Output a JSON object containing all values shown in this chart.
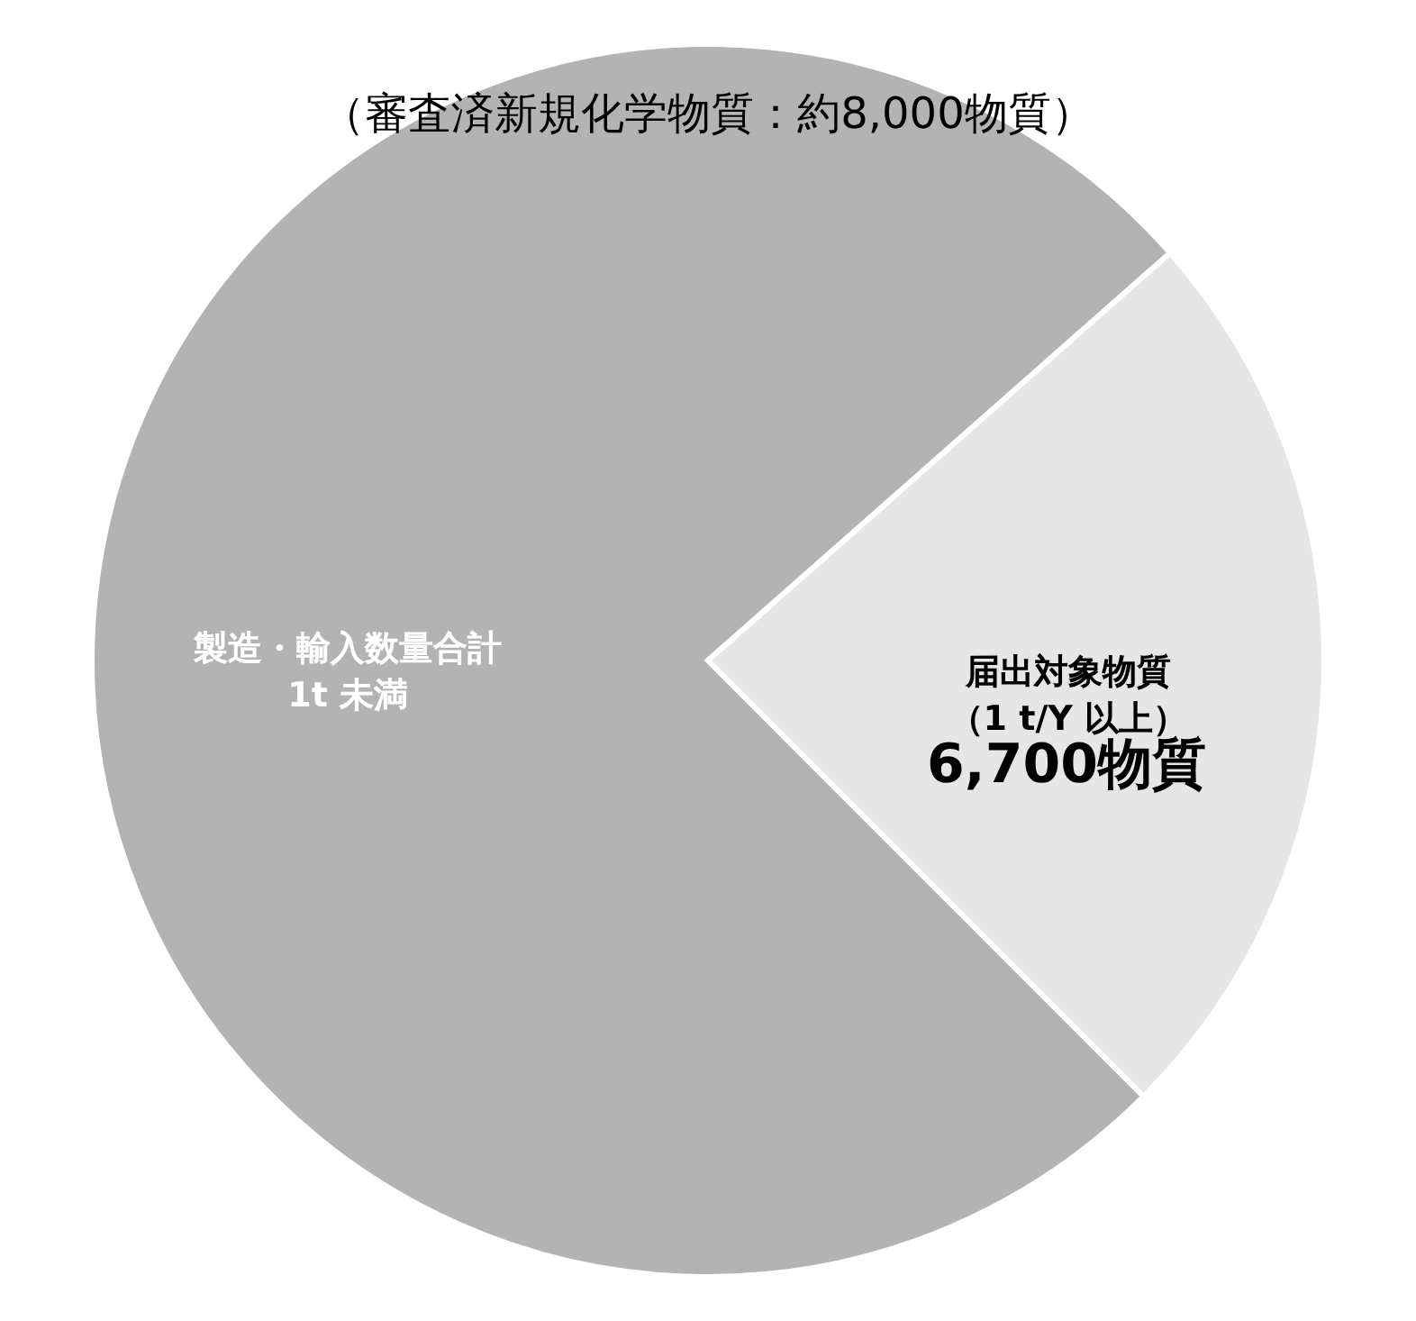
{
  "chart_data": {
    "type": "pie",
    "title": "（審査済新規化学物質：約8,000物質）",
    "categories": [
      "製造・輸入数量合計1t 未満",
      "届出対象物質（1 t/Y 以上）"
    ],
    "values": [
      76,
      24
    ],
    "colors": [
      "#b3b3b3",
      "#e6e6e6"
    ],
    "annotations": [
      "6,700物質"
    ]
  }
}
